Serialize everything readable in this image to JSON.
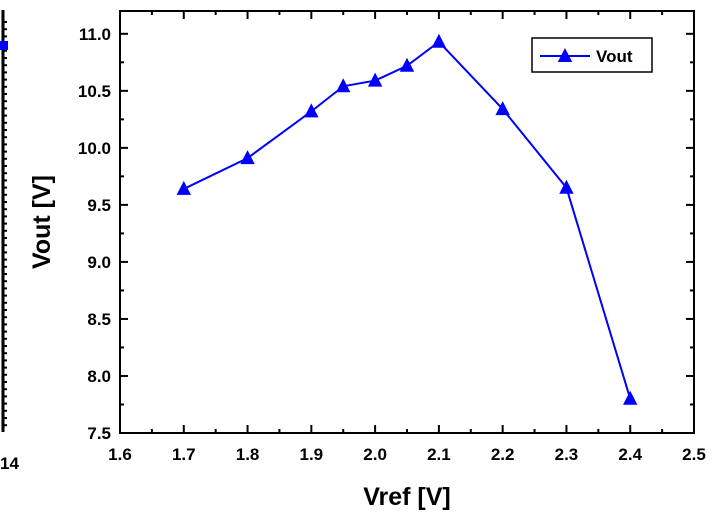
{
  "chart_data": {
    "type": "line",
    "title": "",
    "xlabel": "Vref [V]",
    "ylabel": "Vout [V]",
    "xlim": [
      1.6,
      2.5
    ],
    "ylim": [
      7.5,
      11.2
    ],
    "x_ticks": [
      "1.6",
      "1.7",
      "1.8",
      "1.9",
      "2.0",
      "2.1",
      "2.2",
      "2.3",
      "2.4",
      "2.5"
    ],
    "y_ticks": [
      "7.5",
      "8.0",
      "8.5",
      "9.0",
      "9.5",
      "10.0",
      "10.5",
      "11.0"
    ],
    "grid": false,
    "legend_position": "top-right",
    "series": [
      {
        "name": "Vout",
        "color": "#0000ff",
        "marker": "triangle-up",
        "x": [
          1.7,
          1.8,
          1.9,
          1.95,
          2.0,
          2.05,
          2.1,
          2.2,
          2.3,
          2.4
        ],
        "y": [
          9.64,
          9.91,
          10.32,
          10.54,
          10.59,
          10.72,
          10.93,
          10.34,
          9.65,
          7.8
        ]
      }
    ]
  },
  "left_panel_fragment": {
    "tick_label": "14"
  }
}
